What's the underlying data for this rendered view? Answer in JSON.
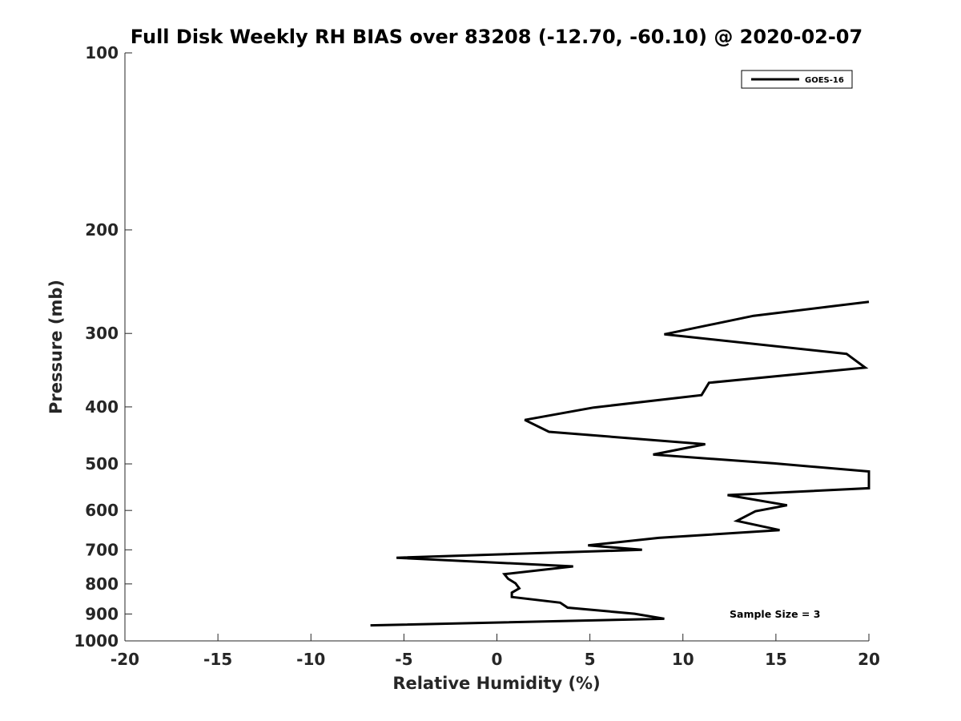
{
  "chart_data": {
    "type": "line",
    "title": "Full Disk Weekly RH BIAS over 83208 (-12.70, -60.10) @ 2020-02-07",
    "xlabel": "Relative Humidity (%)",
    "ylabel": "Pressure (mb)",
    "xlim": [
      -20,
      20
    ],
    "ylim": [
      100,
      1000
    ],
    "y_scale": "log",
    "y_reversed": true,
    "x_ticks": [
      -20,
      -15,
      -10,
      -5,
      0,
      5,
      10,
      15,
      20
    ],
    "y_ticks": [
      100,
      200,
      300,
      400,
      500,
      600,
      700,
      800,
      900,
      1000
    ],
    "grid": false,
    "legend_position": "top-right",
    "series": [
      {
        "name": "GOES-16",
        "color": "#000000",
        "points": [
          {
            "x": 20.0,
            "y": 265
          },
          {
            "x": 13.8,
            "y": 280
          },
          {
            "x": 9.0,
            "y": 301
          },
          {
            "x": 18.8,
            "y": 325
          },
          {
            "x": 19.8,
            "y": 343
          },
          {
            "x": 11.4,
            "y": 364
          },
          {
            "x": 11.0,
            "y": 382
          },
          {
            "x": 5.2,
            "y": 401
          },
          {
            "x": 1.5,
            "y": 421
          },
          {
            "x": 2.8,
            "y": 441
          },
          {
            "x": 11.2,
            "y": 463
          },
          {
            "x": 8.4,
            "y": 482
          },
          {
            "x": 14.9,
            "y": 499
          },
          {
            "x": 20.0,
            "y": 515
          },
          {
            "x": 20.0,
            "y": 550
          },
          {
            "x": 12.4,
            "y": 565
          },
          {
            "x": 15.6,
            "y": 588
          },
          {
            "x": 13.9,
            "y": 602
          },
          {
            "x": 12.9,
            "y": 625
          },
          {
            "x": 15.2,
            "y": 648
          },
          {
            "x": 8.7,
            "y": 668
          },
          {
            "x": 4.9,
            "y": 688
          },
          {
            "x": 7.8,
            "y": 700
          },
          {
            "x": -5.4,
            "y": 722
          },
          {
            "x": 4.1,
            "y": 747
          },
          {
            "x": 0.4,
            "y": 770
          },
          {
            "x": 0.6,
            "y": 784
          },
          {
            "x": 1.0,
            "y": 798
          },
          {
            "x": 1.2,
            "y": 814
          },
          {
            "x": 0.8,
            "y": 828
          },
          {
            "x": 0.8,
            "y": 842
          },
          {
            "x": 3.4,
            "y": 861
          },
          {
            "x": 3.8,
            "y": 878
          },
          {
            "x": 7.4,
            "y": 899
          },
          {
            "x": 9.0,
            "y": 917
          },
          {
            "x": -6.8,
            "y": 941
          }
        ]
      }
    ],
    "annotations": [
      "Sample Size = 3"
    ]
  }
}
